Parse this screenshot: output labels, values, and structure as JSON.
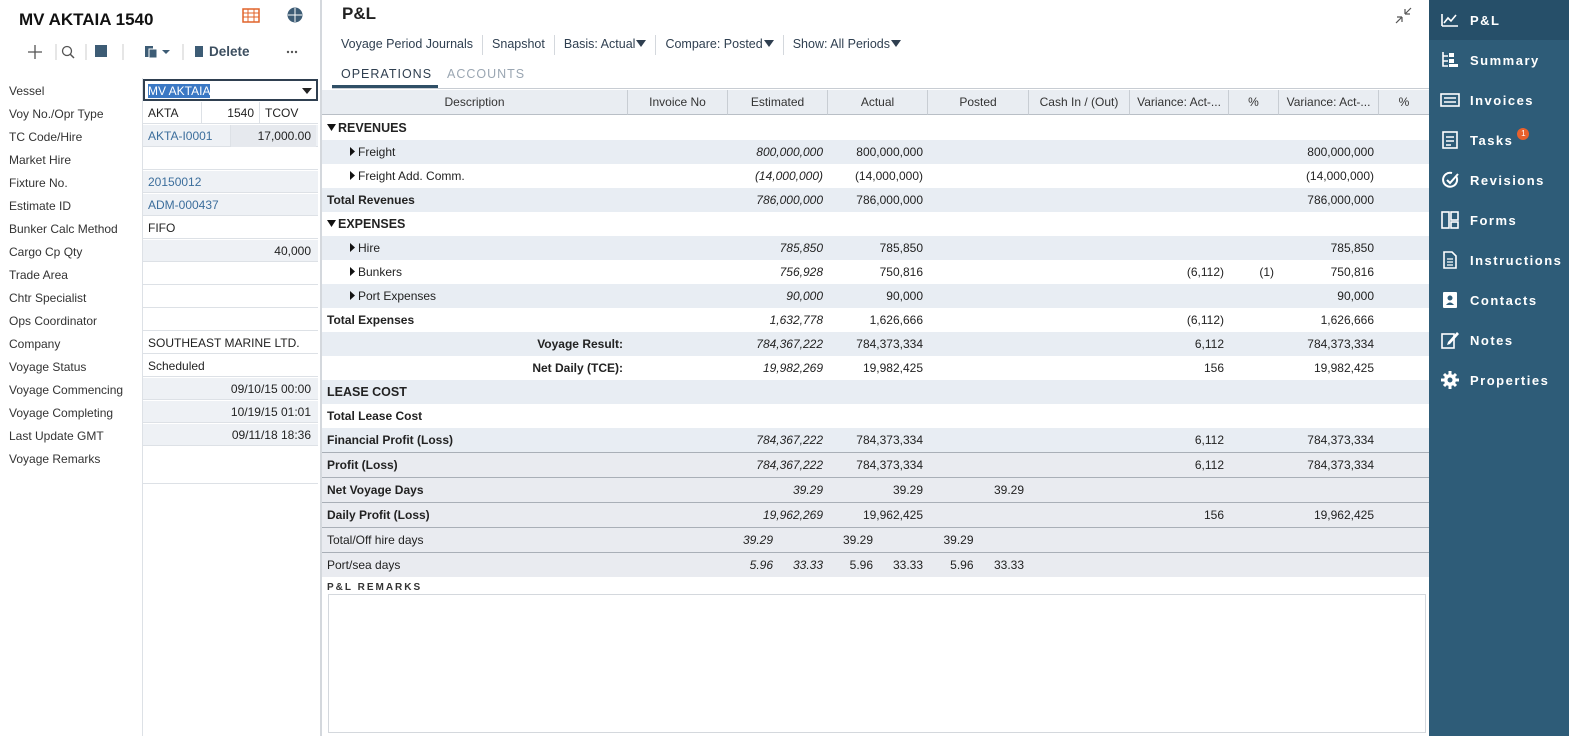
{
  "left": {
    "title": "MV AKTAIA 1540",
    "delete": "Delete",
    "fields": [
      {
        "label": "Vessel",
        "values": [
          "MV AKTAIA"
        ],
        "select": true
      },
      {
        "label": "Voy No./Opr Type",
        "values": [
          "AKTA",
          "1540",
          "TCOV"
        ]
      },
      {
        "label": "TC Code/Hire",
        "values": [
          "AKTA-I0001",
          "17,000.00"
        ],
        "link": true,
        "readonly": true
      },
      {
        "label": "Market Hire",
        "values": []
      },
      {
        "label": "Fixture No.",
        "values": [
          "20150012"
        ],
        "link": true,
        "readonly": true
      },
      {
        "label": "Estimate ID",
        "values": [
          "ADM-000437"
        ],
        "link": true,
        "readonly": true
      },
      {
        "label": "Bunker Calc Method",
        "values": [
          "FIFO"
        ]
      },
      {
        "label": "Cargo Cp Qty",
        "values": [
          "40,000"
        ],
        "readonly": true
      },
      {
        "label": "Trade Area",
        "values": []
      },
      {
        "label": "Chtr Specialist",
        "values": []
      },
      {
        "label": "Ops Coordinator",
        "values": []
      },
      {
        "label": "Company",
        "values": [
          "SOUTHEAST MARINE LTD."
        ]
      },
      {
        "label": "Voyage Status",
        "values": [
          "Scheduled"
        ]
      },
      {
        "label": "Voyage Commencing",
        "values": [
          "09/10/15 00:00"
        ],
        "readonly": true
      },
      {
        "label": "Voyage Completing",
        "values": [
          "10/19/15 01:01"
        ],
        "readonly": true
      },
      {
        "label": "Last Update GMT",
        "values": [
          "09/11/18 18:36"
        ],
        "readonly": true
      },
      {
        "label": "Voyage Remarks",
        "values": [],
        "textarea": true
      }
    ]
  },
  "main": {
    "title": "P&L",
    "toolbar": [
      "Voyage Period Journals",
      "Snapshot",
      "Basis: Actual",
      "Compare: Posted",
      "Show: All Periods"
    ],
    "tabs": [
      "OPERATIONS",
      "ACCOUNTS"
    ],
    "remarks_label": "P&L REMARKS"
  },
  "table": {
    "columns": [
      "Description",
      "Invoice No",
      "Estimated",
      "Actual",
      "Posted",
      "Cash In / (Out)",
      "Variance: Act-...",
      "%",
      "Variance: Act-...",
      "%"
    ],
    "rows": [
      {
        "kind": "section",
        "label": "REVENUES",
        "cells": []
      },
      {
        "kind": "item",
        "label": "Freight",
        "cells": [
          null,
          "800,000,000",
          "800,000,000",
          null,
          null,
          null,
          null,
          "800,000,000"
        ]
      },
      {
        "kind": "item",
        "label": "Freight Add. Comm.",
        "cells": [
          null,
          "(14,000,000)",
          "(14,000,000)",
          null,
          null,
          null,
          null,
          "(14,000,000)"
        ]
      },
      {
        "kind": "total",
        "label": "Total Revenues",
        "cells": [
          null,
          "786,000,000",
          "786,000,000",
          null,
          null,
          null,
          null,
          "786,000,000"
        ]
      },
      {
        "kind": "section",
        "label": "EXPENSES",
        "cells": []
      },
      {
        "kind": "item",
        "label": "Hire",
        "cells": [
          null,
          "785,850",
          "785,850",
          null,
          null,
          null,
          null,
          "785,850"
        ]
      },
      {
        "kind": "item",
        "label": "Bunkers",
        "cells": [
          null,
          "756,928",
          "750,816",
          null,
          null,
          "(6,112)",
          "(1)",
          "750,816"
        ]
      },
      {
        "kind": "item",
        "label": "Port Expenses",
        "cells": [
          null,
          "90,000",
          "90,000",
          null,
          null,
          null,
          null,
          "90,000"
        ]
      },
      {
        "kind": "total",
        "label": "Total Expenses",
        "cells": [
          null,
          "1,632,778",
          "1,626,666",
          null,
          null,
          "(6,112)",
          null,
          "1,626,666"
        ]
      },
      {
        "kind": "result",
        "label": "Voyage Result:",
        "cells": [
          null,
          "784,367,222",
          "784,373,334",
          null,
          null,
          "6,112",
          null,
          "784,373,334"
        ]
      },
      {
        "kind": "result",
        "label": "Net Daily (TCE):",
        "cells": [
          null,
          "19,982,269",
          "19,982,425",
          null,
          null,
          "156",
          null,
          "19,982,425"
        ]
      },
      {
        "kind": "heading",
        "label": "LEASE COST",
        "cells": []
      },
      {
        "kind": "total",
        "label": "Total Lease Cost",
        "cells": []
      },
      {
        "kind": "total",
        "label": "Financial Profit (Loss)",
        "cells": [
          null,
          "784,367,222",
          "784,373,334",
          null,
          null,
          "6,112",
          null,
          "784,373,334"
        ]
      },
      {
        "kind": "summary",
        "label": "Profit (Loss)",
        "cells": [
          null,
          "784,367,222",
          "784,373,334",
          null,
          null,
          "6,112",
          null,
          "784,373,334"
        ]
      },
      {
        "kind": "summary",
        "label": "Net Voyage Days",
        "cells": [
          null,
          "39.29",
          "39.29",
          "39.29"
        ]
      },
      {
        "kind": "summary",
        "label": "Daily Profit (Loss)",
        "cells": [
          null,
          "19,962,269",
          "19,962,425",
          null,
          null,
          "156",
          null,
          "19,962,425"
        ]
      },
      {
        "kind": "detail",
        "label": "Total/Off hire days",
        "cells": [
          null,
          [
            "39.29"
          ],
          [
            "39.29"
          ],
          [
            "39.29"
          ]
        ]
      },
      {
        "kind": "detail",
        "label": "Port/sea days",
        "cells": [
          null,
          [
            "5.96",
            "33.33"
          ],
          [
            "5.96",
            "33.33"
          ],
          [
            "5.96",
            "33.33"
          ]
        ]
      }
    ]
  },
  "sidebar": {
    "items": [
      {
        "label": "P&L",
        "active": true
      },
      {
        "label": "Summary"
      },
      {
        "label": "Invoices"
      },
      {
        "label": "Tasks",
        "badge": "1"
      },
      {
        "label": "Revisions"
      },
      {
        "label": "Forms"
      },
      {
        "label": "Instructions"
      },
      {
        "label": "Contacts"
      },
      {
        "label": "Notes"
      },
      {
        "label": "Properties"
      }
    ]
  }
}
